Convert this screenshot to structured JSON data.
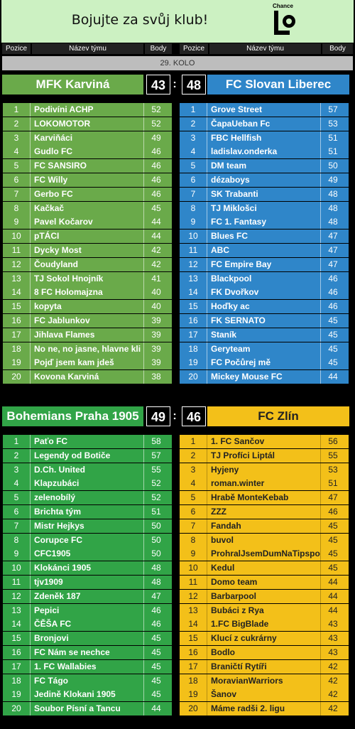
{
  "banner": {
    "title": "Bojujte za svůj klub!",
    "logo_text": "Chance"
  },
  "header": {
    "pos": "Pozice",
    "name": "Název týmu",
    "pts": "Body"
  },
  "round": "29. KOLO",
  "matches": [
    {
      "home": {
        "name": "MFK Karviná",
        "score": "43"
      },
      "away": {
        "name": "FC Slovan Liberec",
        "score": "48"
      },
      "colon": ":",
      "home_rows": [
        [
          "1",
          "Podivíni ACHP",
          "52"
        ],
        [
          "2",
          "LOKOMOTOR",
          "52"
        ],
        [
          "3",
          "Karviňáci",
          "49"
        ],
        [
          "4",
          "Gudlo FC",
          "46"
        ],
        [
          "5",
          "FC SANSIRO",
          "46"
        ],
        [
          "6",
          "FC Willy",
          "46"
        ],
        [
          "7",
          "Gerbo FC",
          "46"
        ],
        [
          "8",
          "Kačkač",
          "45"
        ],
        [
          "9",
          "Pavel Kočarov",
          "44"
        ],
        [
          "10",
          "pTÁCI",
          "44"
        ],
        [
          "11",
          "Dycky Most",
          "42"
        ],
        [
          "12",
          "Čoudyland",
          "42"
        ],
        [
          "13",
          "TJ Sokol Hnojník",
          "41"
        ],
        [
          "14",
          "8 FC Holomajzna",
          "40"
        ],
        [
          "15",
          "kopyta",
          "40"
        ],
        [
          "16",
          "FC Jablunkov",
          "39"
        ],
        [
          "17",
          "Jihlava Flames",
          "39"
        ],
        [
          "18",
          "No ne, no jasne, hlavne kli",
          "39"
        ],
        [
          "19",
          "Pojď jsem kam jdeš",
          "39"
        ],
        [
          "20",
          "Kovona Karviná",
          "38"
        ]
      ],
      "away_rows": [
        [
          "1",
          "Grove Street",
          "57"
        ],
        [
          "2",
          "ČapaUeban Fc",
          "53"
        ],
        [
          "3",
          "FBC Hellfish",
          "51"
        ],
        [
          "4",
          "ladislav.onderka",
          "51"
        ],
        [
          "5",
          "DM team",
          "50"
        ],
        [
          "6",
          "dézaboys",
          "49"
        ],
        [
          "7",
          "SK Trabanti",
          "48"
        ],
        [
          "8",
          "TJ Miklošci",
          "48"
        ],
        [
          "9",
          "FC 1. Fantasy",
          "48"
        ],
        [
          "10",
          "Blues FC",
          "47"
        ],
        [
          "11",
          "ABC",
          "47"
        ],
        [
          "12",
          "FC Empire Bay",
          "47"
        ],
        [
          "13",
          "Blackpool",
          "46"
        ],
        [
          "14",
          "FK Dvořkov",
          "46"
        ],
        [
          "15",
          "Hoďky ac",
          "46"
        ],
        [
          "16",
          "FK SERNATO",
          "45"
        ],
        [
          "17",
          "Staník",
          "45"
        ],
        [
          "18",
          "Geryteam",
          "45"
        ],
        [
          "19",
          "FC Počůrej mě",
          "45"
        ],
        [
          "20",
          "Mickey Mouse FC",
          "44"
        ]
      ]
    },
    {
      "home": {
        "name": "Bohemians Praha 1905",
        "score": "49"
      },
      "away": {
        "name": "FC Zlín",
        "score": "46"
      },
      "colon": ":",
      "home_rows": [
        [
          "1",
          "Paťo FC",
          "58"
        ],
        [
          "2",
          "Legendy od Botiče",
          "57"
        ],
        [
          "3",
          "D.Ch. United",
          "55"
        ],
        [
          "4",
          "Klapzubáci",
          "52"
        ],
        [
          "5",
          "zelenobílý",
          "52"
        ],
        [
          "6",
          "Brichta tým",
          "51"
        ],
        [
          "7",
          "Mistr Hejkys",
          "50"
        ],
        [
          "8",
          "Corupce FC",
          "50"
        ],
        [
          "9",
          "CFC1905",
          "50"
        ],
        [
          "10",
          "Klokánci 1905",
          "48"
        ],
        [
          "11",
          "tjv1909",
          "48"
        ],
        [
          "12",
          "Zdeněk 187",
          "47"
        ],
        [
          "13",
          "Pepici",
          "46"
        ],
        [
          "14",
          "ČĚŠA FC",
          "46"
        ],
        [
          "15",
          "Bronjovi",
          "45"
        ],
        [
          "16",
          "FC Nám se nechce",
          "45"
        ],
        [
          "17",
          "1. FC Wallabies",
          "45"
        ],
        [
          "18",
          "FC Tágo",
          "45"
        ],
        [
          "19",
          "Jedině Klokani 1905",
          "45"
        ],
        [
          "20",
          "Soubor Písní a Tancu",
          "44"
        ]
      ],
      "away_rows": [
        [
          "1",
          "1. FC Sančov",
          "56"
        ],
        [
          "2",
          "TJ Profíci Liptál",
          "55"
        ],
        [
          "3",
          "Hyjeny",
          "53"
        ],
        [
          "4",
          "roman.winter",
          "51"
        ],
        [
          "5",
          "Hrabě MonteKebab",
          "47"
        ],
        [
          "6",
          "ZZZ",
          "46"
        ],
        [
          "7",
          "Fandah",
          "45"
        ],
        [
          "8",
          "buvol",
          "45"
        ],
        [
          "9",
          "ProhralJsemDumNaTipspo",
          "45"
        ],
        [
          "10",
          "Kedul",
          "45"
        ],
        [
          "11",
          "Domo team",
          "44"
        ],
        [
          "12",
          "Barbarpool",
          "44"
        ],
        [
          "13",
          "Bubáci z Rya",
          "44"
        ],
        [
          "14",
          "1.FC BigBlade",
          "43"
        ],
        [
          "15",
          "Klucí z cukrárny",
          "43"
        ],
        [
          "16",
          "Bodlo",
          "43"
        ],
        [
          "17",
          "Braničtí Rytíři",
          "42"
        ],
        [
          "18",
          "MoravianWarriors",
          "42"
        ],
        [
          "19",
          "Šanov",
          "42"
        ],
        [
          "20",
          "Máme radši 2. ligu",
          "42"
        ]
      ]
    }
  ],
  "colors": {
    "green1": "#6aaa4a",
    "blue": "#2f86c9",
    "green2": "#31a447",
    "yellow": "#f3c019"
  }
}
